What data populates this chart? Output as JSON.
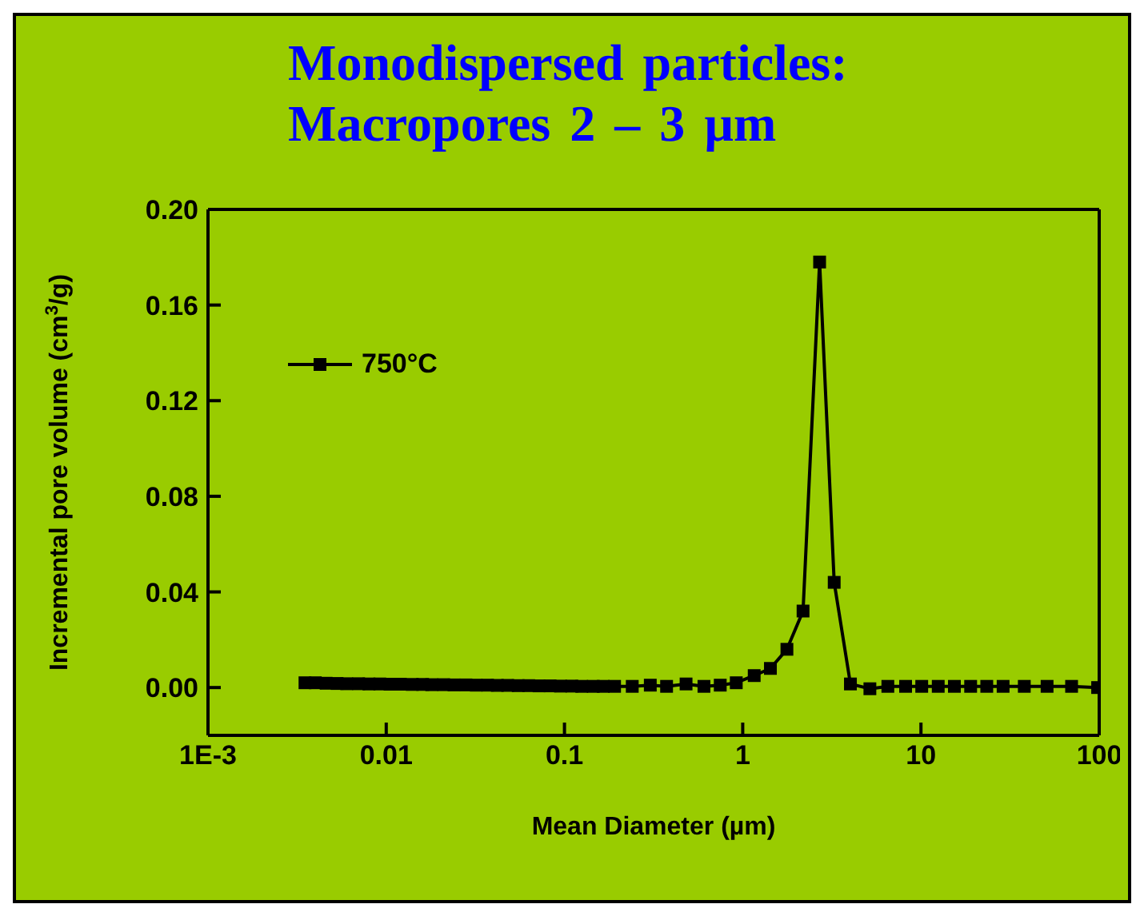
{
  "chart_data": {
    "type": "line",
    "title": "Monodispersed particles: Macropores 2 – 3 µm",
    "xlabel": "Mean Diameter (µm)",
    "ylabel": "Incremental pore volume (cm$^{3}$/g)",
    "x": [
      0.0035,
      0.004,
      0.0046,
      0.0053,
      0.006,
      0.007,
      0.008,
      0.0092,
      0.0105,
      0.012,
      0.014,
      0.016,
      0.018,
      0.021,
      0.024,
      0.028,
      0.032,
      0.037,
      0.042,
      0.048,
      0.055,
      0.063,
      0.072,
      0.083,
      0.095,
      0.11,
      0.125,
      0.145,
      0.165,
      0.191,
      0.24,
      0.303,
      0.374,
      0.481,
      0.606,
      0.748,
      0.92,
      1.16,
      1.43,
      1.77,
      2.18,
      2.7,
      3.26,
      4.02,
      5.17,
      6.52,
      8.2,
      10.1,
      12.5,
      15.4,
      19,
      23.4,
      28.9,
      38,
      51,
      70,
      98
    ],
    "series": [
      {
        "name": "750°C",
        "color": "#000000",
        "values": [
          0.002,
          0.002,
          0.0018,
          0.0017,
          0.0016,
          0.0016,
          0.0015,
          0.0015,
          0.0014,
          0.0014,
          0.0013,
          0.0013,
          0.0012,
          0.0012,
          0.0011,
          0.0011,
          0.001,
          0.001,
          0.0009,
          0.0009,
          0.0008,
          0.0008,
          0.0007,
          0.0007,
          0.0006,
          0.0006,
          0.0005,
          0.0005,
          0.0005,
          0.0005,
          0.0005,
          0.001,
          0.0005,
          0.0015,
          0.0005,
          0.001,
          0.002,
          0.005,
          0.008,
          0.016,
          0.032,
          0.178,
          0.044,
          0.0015,
          -0.0005,
          0.0005,
          0.0005,
          0.0005,
          0.0005,
          0.0005,
          0.0005,
          0.0005,
          0.0005,
          0.0005,
          0.0005,
          0.0005,
          0
        ]
      }
    ],
    "xlim": [
      0.001,
      100
    ],
    "xticks": [
      {
        "value": 0.001,
        "label": "1E-3"
      },
      0.01,
      0.1,
      1,
      10,
      100
    ],
    "log": "x",
    "ylim": [
      -0.02,
      0.2
    ],
    "yticks": [
      {
        "value": 0,
        "label": "0.00"
      },
      {
        "value": 0.04,
        "label": "0.04"
      },
      {
        "value": 0.08,
        "label": "0.08"
      },
      {
        "value": 0.12,
        "label": "0.12"
      },
      {
        "value": 0.16,
        "label": "0.16"
      },
      {
        "value": 0.2,
        "label": "0.20"
      }
    ],
    "legend": "top left",
    "marker": "square",
    "line_style": "solid",
    "grid": false
  }
}
